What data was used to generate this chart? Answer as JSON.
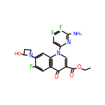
{
  "bg_color": "#ffffff",
  "bond_color": "#000000",
  "atom_colors": {
    "N": "#0000ff",
    "O": "#ff0000",
    "F": "#00bb00",
    "C": "#000000"
  },
  "figsize": [
    1.52,
    1.52
  ],
  "dpi": 100
}
